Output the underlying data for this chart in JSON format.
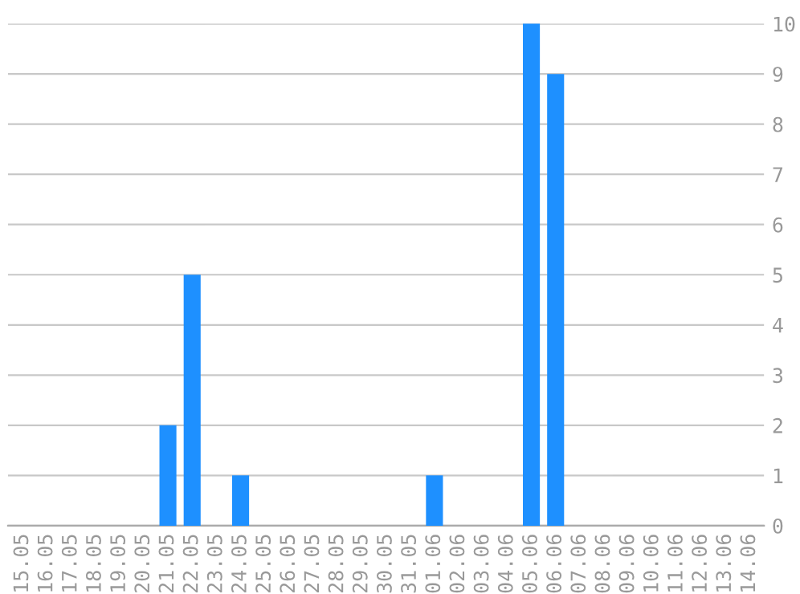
{
  "chart_data": {
    "type": "bar",
    "categories": [
      "15.05",
      "16.05",
      "17.05",
      "18.05",
      "19.05",
      "20.05",
      "21.05",
      "22.05",
      "23.05",
      "24.05",
      "25.05",
      "26.05",
      "27.05",
      "28.05",
      "29.05",
      "30.05",
      "31.05",
      "01.06",
      "02.06",
      "03.06",
      "04.06",
      "05.06",
      "06.06",
      "07.06",
      "08.06",
      "09.06",
      "10.06",
      "11.06",
      "12.06",
      "13.06",
      "14.06"
    ],
    "values": [
      0,
      0,
      0,
      0,
      0,
      0,
      2,
      5,
      0,
      1,
      0,
      0,
      0,
      0,
      0,
      0,
      0,
      1,
      0,
      0,
      0,
      10,
      9,
      0,
      0,
      0,
      0,
      0,
      0,
      0,
      0
    ],
    "color": "#1e90ff",
    "ylim": [
      0,
      10
    ],
    "yticks": [
      0,
      1,
      2,
      3,
      4,
      5,
      6,
      7,
      8,
      9,
      10
    ],
    "grid": "y"
  }
}
